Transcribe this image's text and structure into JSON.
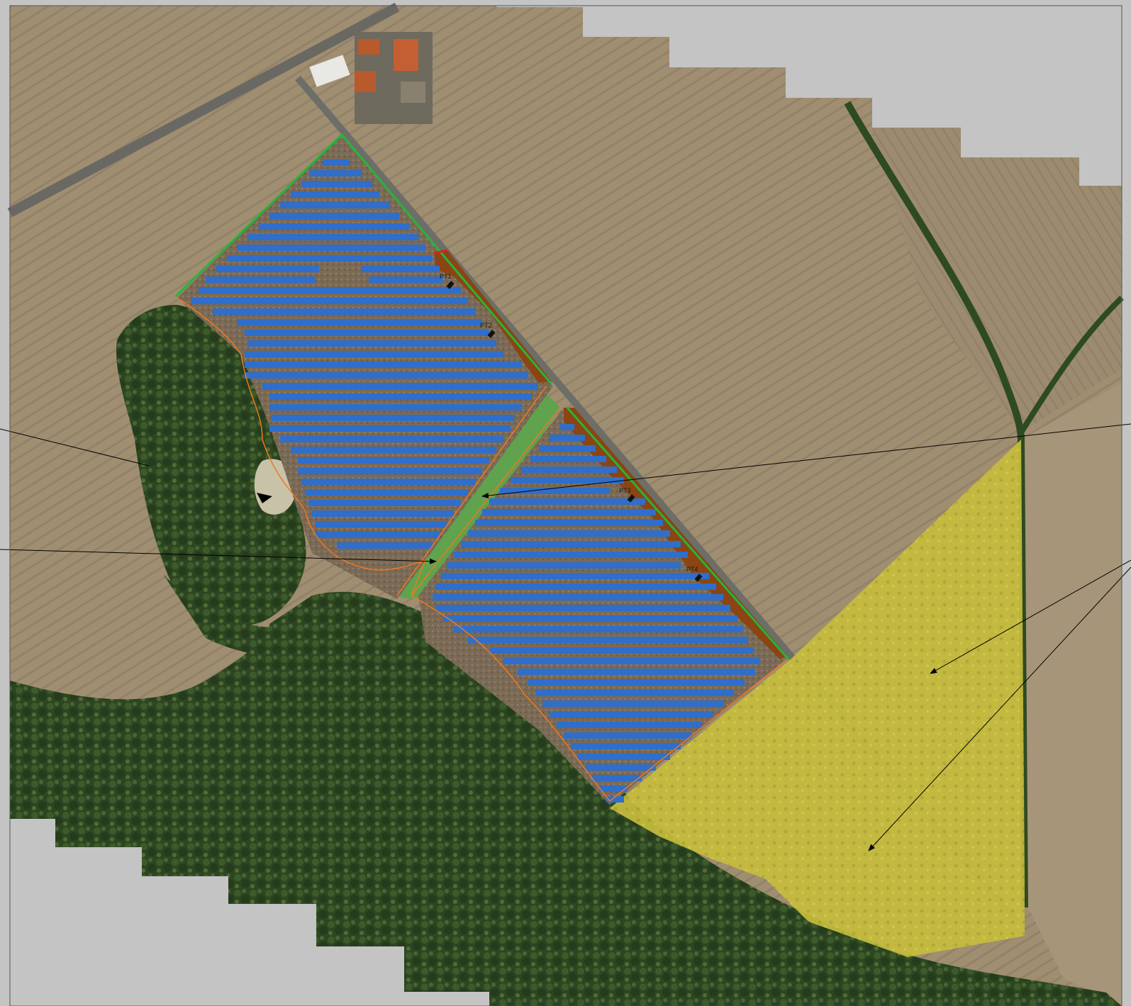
{
  "map": {
    "colors": {
      "background_gray": "#c4c4c4",
      "field_light": "#a18f72",
      "field_dark": "#8c7b63",
      "forest": "#2f4a24",
      "forest_light": "#4a5e34",
      "solar_panel": "#2f6ecb",
      "brown_access": "#8a4512",
      "green_fence": "#27b43a",
      "green_strip": "#5fa34e",
      "yellow_area": "#c9c13a",
      "orange_boundary": "#f07820",
      "road": "#6e6e68",
      "pointer_line": "#000000"
    },
    "substations": [
      {
        "label": "PT1"
      },
      {
        "label": "PT2"
      },
      {
        "label": "PT3"
      },
      {
        "label": "PT4"
      }
    ],
    "icons": {
      "substation": "transformer-marker-icon",
      "arrow": "leader-arrowhead-icon"
    }
  }
}
